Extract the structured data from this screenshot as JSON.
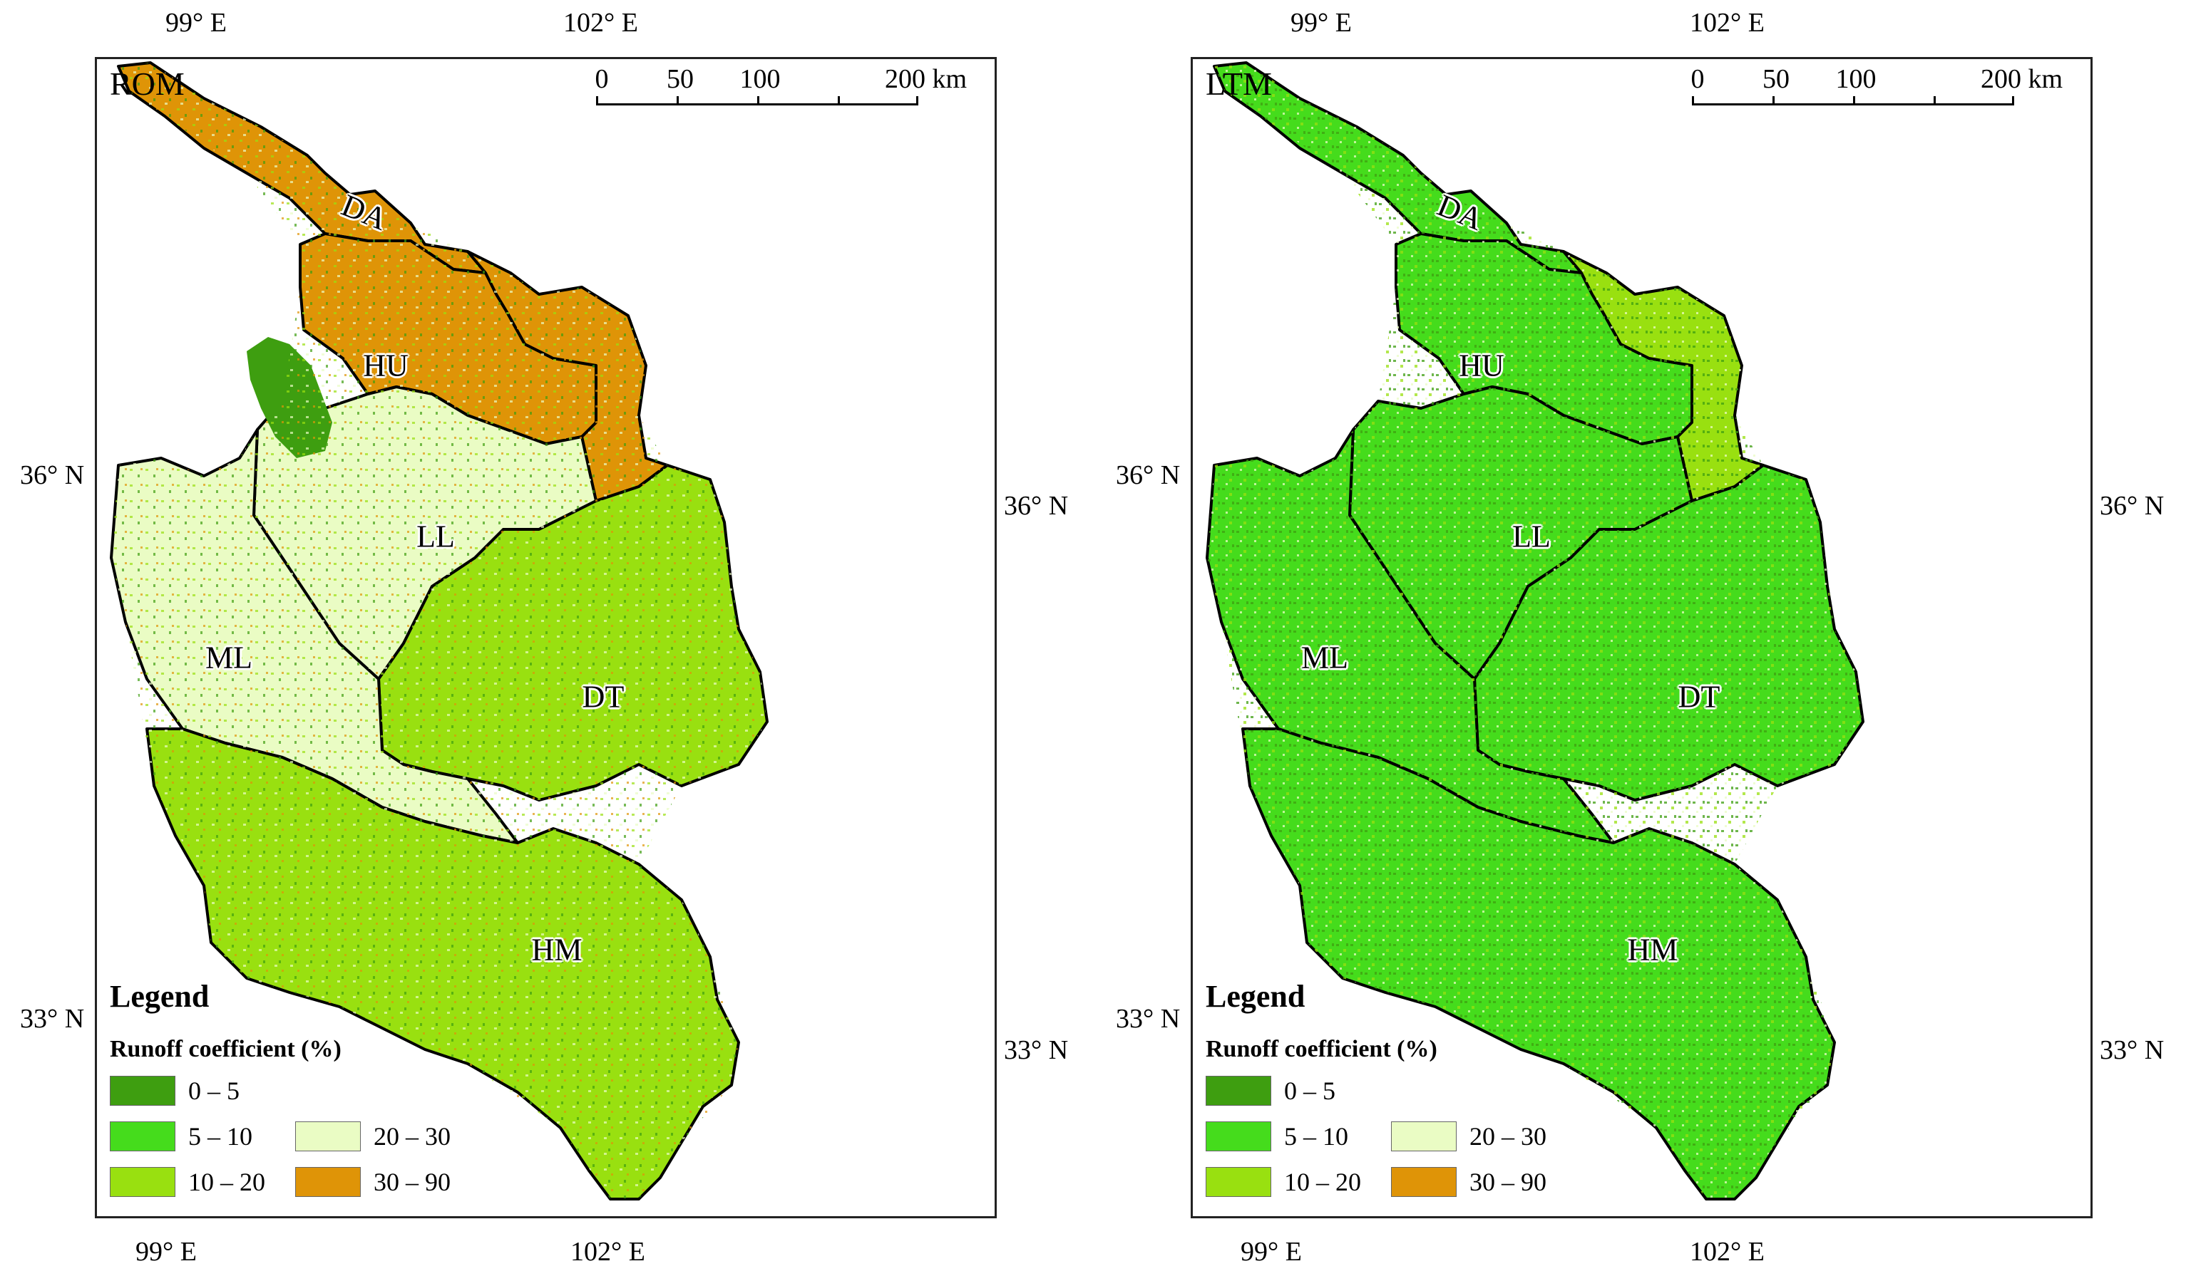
{
  "axes": {
    "lon_ticks": [
      "99° E",
      "102° E"
    ],
    "lat_ticks": [
      "36° N",
      "33° N"
    ]
  },
  "scalebar": {
    "labels": [
      "0",
      "50",
      "100",
      "200 km"
    ]
  },
  "legend": {
    "title": "Legend",
    "subtitle": "Runoff coefficient (%)",
    "classes": [
      {
        "label": "0 – 5",
        "color": "#3e9e10"
      },
      {
        "label": "5 – 10",
        "color": "#45dc1c"
      },
      {
        "label": "10 – 20",
        "color": "#99e010"
      },
      {
        "label": "20 – 30",
        "color": "#eafcc4"
      },
      {
        "label": "30 – 90",
        "color": "#df9407"
      }
    ]
  },
  "regions": [
    "DA",
    "HU",
    "LL",
    "ML",
    "DT",
    "HM"
  ],
  "panels": [
    {
      "label": "ROM",
      "dominant_class": "mixed (20 – 30, 10 – 20, 30 – 90)"
    },
    {
      "label": "LTM",
      "dominant_class": "5 – 10"
    }
  ],
  "colors": {
    "boundary": "#000000",
    "frame": "#222222"
  }
}
